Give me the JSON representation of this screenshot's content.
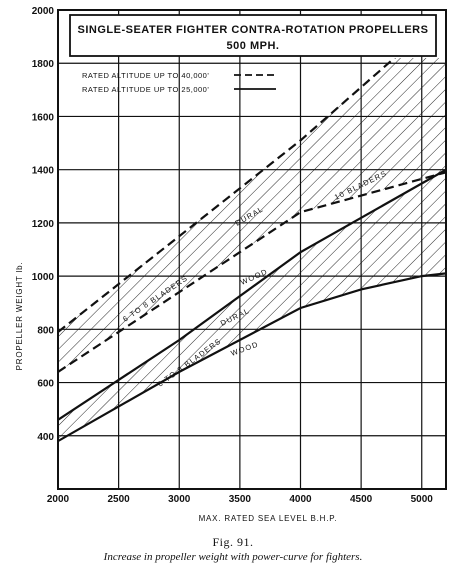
{
  "chart_data": {
    "type": "area",
    "title": "SINGLE-SEATER FIGHTER CONTRA-ROTATION PROPELLERS",
    "subtitle": "500 MPH.",
    "xlabel": "MAX. RATED SEA LEVEL B.H.P.",
    "ylabel": "PROPELLER WEIGHT lb.",
    "xlim": [
      2000,
      5200
    ],
    "ylim": [
      200,
      2000
    ],
    "x_ticks": [
      "2000",
      "2500",
      "3000",
      "3500",
      "4000",
      "4500",
      "5000"
    ],
    "y_ticks": [
      "400",
      "600",
      "800",
      "1000",
      "1200",
      "1400",
      "1600",
      "1800",
      "2000"
    ],
    "grid": true,
    "legend": [
      {
        "label": "RATED ALTITUDE UP TO 40,000'",
        "style": "dashed"
      },
      {
        "label": "RATED ALTITUDE UP TO 25,000'",
        "style": "solid"
      }
    ],
    "series": [
      {
        "name": "DURAL",
        "altitude": "40,000'",
        "style": "dashed",
        "x": [
          2000,
          4000,
          5200
        ],
        "y": [
          790,
          1510,
          1990
        ]
      },
      {
        "name": "WOOD",
        "altitude": "40,000'",
        "style": "dashed",
        "x": [
          2000,
          3000,
          4000,
          5200
        ],
        "y": [
          640,
          940,
          1240,
          1390
        ]
      },
      {
        "name": "DURAL",
        "altitude": "25,000'",
        "style": "solid",
        "x": [
          2000,
          3000,
          4000,
          5200
        ],
        "y": [
          460,
          760,
          1090,
          1400
        ]
      },
      {
        "name": "WOOD",
        "altitude": "25,000'",
        "style": "solid",
        "x": [
          2000,
          3000,
          4000,
          4500,
          5000,
          5200
        ],
        "y": [
          380,
          640,
          880,
          950,
          1000,
          1010
        ]
      }
    ],
    "annotations": [
      "6 TO 8 BLADERS",
      "10 BLADERS",
      "DURAL",
      "WOOD",
      "6 TO 8 BLADERS",
      "DURAL",
      "WOOD"
    ]
  },
  "figure": {
    "number": "Fig. 91.",
    "caption": "Increase in propeller weight with power-curve for fighters."
  },
  "colors": {
    "ink": "#111111",
    "background": "#ffffff"
  }
}
